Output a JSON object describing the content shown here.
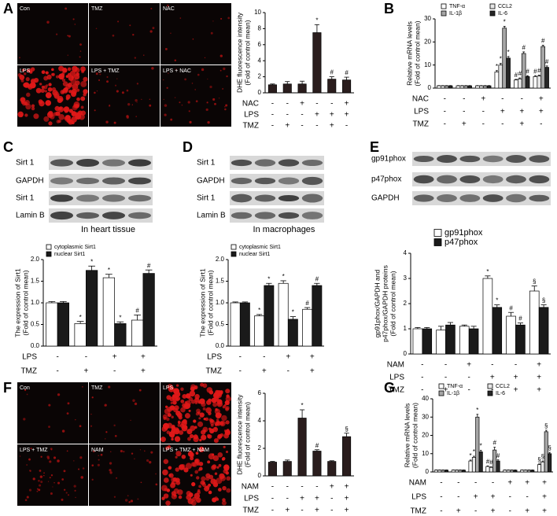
{
  "panels": [
    "A",
    "B",
    "C",
    "D",
    "E",
    "F",
    "G"
  ],
  "micrographs": [
    {
      "labels": [
        "Con",
        "TMZ",
        "NAC",
        "LPS",
        "LPS + TMZ",
        "LPS + NAC"
      ]
    },
    {
      "labels": [
        "Con",
        "TMZ",
        "LPS",
        "LPS + TMZ",
        "NAM",
        "LPS + TMZ + NAM"
      ]
    }
  ],
  "blots": [
    {
      "labels": [
        "Sirt 1",
        "GAPDH",
        "Sirt 1",
        "Lamin B"
      ]
    },
    {
      "labels": [
        "Sirt 1",
        "GAPDH",
        "Sirt 1",
        "Lamin B"
      ]
    },
    {
      "labels": [
        "gp91phox",
        "p47phox",
        "GAPDH"
      ]
    }
  ],
  "chart_data": [
    {
      "type": "bar",
      "y_label": [
        "DHE fluorescence intensity",
        "(Fold of control mean)"
      ],
      "values": [
        1.0,
        1.1,
        1.1,
        7.5,
        1.7,
        1.6
      ],
      "errors": [
        0.1,
        0.3,
        0.35,
        1.0,
        0.3,
        0.35
      ],
      "annotations": [
        null,
        null,
        null,
        "*",
        "#",
        "#"
      ],
      "color": "#2a1d1d",
      "ylim": [
        0,
        10
      ],
      "yticks": [
        0,
        2,
        4,
        6,
        8,
        10
      ],
      "conditions": [
        {
          "name": "NAC",
          "signs": [
            "-",
            "-",
            "+",
            "-",
            "-",
            "+"
          ]
        },
        {
          "name": "LPS",
          "signs": [
            "-",
            "-",
            "-",
            "+",
            "+",
            "+"
          ]
        },
        {
          "name": "TMZ",
          "signs": [
            "-",
            "+",
            "-",
            "-",
            "+",
            "-"
          ]
        }
      ]
    },
    {
      "type": "bar",
      "y_label": [
        "Relative mRNA levels",
        "(Fold of control mean)"
      ],
      "series": [
        {
          "name": "TNF-α",
          "color": "#ffffff",
          "values": [
            1,
            1,
            1,
            7,
            3.5,
            5
          ],
          "errors": [
            0.1,
            0.1,
            0.1,
            0.6,
            0.3,
            0.4
          ],
          "annotations": [
            null,
            null,
            null,
            "*",
            "#",
            "#"
          ]
        },
        {
          "name": "CCL2",
          "color": "#e6e6e6",
          "values": [
            1,
            1,
            1,
            10,
            4,
            5.2
          ],
          "errors": [
            0.1,
            0.1,
            0.1,
            0.7,
            0.4,
            0.4
          ],
          "annotations": [
            null,
            null,
            null,
            "*",
            "#",
            "#"
          ]
        },
        {
          "name": "IL-1β",
          "color": "#a6a6a6",
          "values": [
            1,
            1,
            1,
            26,
            15,
            18
          ],
          "errors": [
            0.1,
            0.1,
            0.1,
            0.8,
            0.7,
            0.6
          ],
          "annotations": [
            null,
            null,
            null,
            "*",
            "#",
            "#"
          ]
        },
        {
          "name": "IL-6",
          "color": "#262626",
          "values": [
            1,
            1,
            1,
            13,
            5,
            9
          ],
          "errors": [
            0.1,
            0.1,
            0.1,
            0.7,
            0.4,
            0.6
          ],
          "annotations": [
            null,
            null,
            null,
            "*",
            "#",
            "#"
          ]
        }
      ],
      "ylim": [
        0,
        30
      ],
      "yticks": [
        0,
        10,
        20,
        30
      ],
      "conditions": [
        {
          "name": "NAC",
          "signs": [
            "-",
            "-",
            "+",
            "-",
            "-",
            "+"
          ]
        },
        {
          "name": "LPS",
          "signs": [
            "-",
            "-",
            "-",
            "+",
            "+",
            "+"
          ]
        },
        {
          "name": "TMZ",
          "signs": [
            "-",
            "+",
            "-",
            "-",
            "+",
            "-"
          ]
        }
      ]
    },
    {
      "type": "bar",
      "subtitle": "In heart tissue",
      "y_label": [
        "The expression of Sirt1",
        "(Fold of control mean)"
      ],
      "series": [
        {
          "name": "cytoplasmic Sirt1",
          "color": "#ffffff",
          "values": [
            1.0,
            0.52,
            1.58,
            0.6
          ],
          "errors": [
            0.03,
            0.05,
            0.08,
            0.12
          ],
          "annotations": [
            null,
            "*",
            "*",
            "#"
          ]
        },
        {
          "name": "nuclear Sirt1",
          "color": "#1a1a1a",
          "values": [
            1.0,
            1.75,
            0.52,
            1.68
          ],
          "errors": [
            0.03,
            0.1,
            0.04,
            0.08
          ],
          "annotations": [
            null,
            "*",
            "*",
            "#"
          ]
        }
      ],
      "ylim": [
        0,
        2
      ],
      "yticks": [
        {
          "value": 0,
          "label": "0.0"
        },
        {
          "value": 0.5,
          "label": "0.5"
        },
        {
          "value": 1,
          "label": "1.0"
        },
        {
          "value": 1.5,
          "label": "1.5"
        },
        {
          "value": 2,
          "label": "2.0"
        }
      ],
      "conditions": [
        {
          "name": "LPS",
          "signs": [
            "-",
            "-",
            "+",
            "+"
          ]
        },
        {
          "name": "TMZ",
          "signs": [
            "-",
            "+",
            "-",
            "+"
          ]
        }
      ]
    },
    {
      "type": "bar",
      "subtitle": "In macrophages",
      "y_label": [
        "The expression of Sirt1",
        "(Fold of control mean)"
      ],
      "series": [
        {
          "name": "cytoplasmic Sirt1",
          "color": "#ffffff",
          "values": [
            1.0,
            0.7,
            1.45,
            0.85
          ],
          "errors": [
            0.02,
            0.03,
            0.06,
            0.04
          ],
          "annotations": [
            null,
            "*",
            "*",
            "#"
          ]
        },
        {
          "name": "nuclear Sirt1",
          "color": "#1a1a1a",
          "values": [
            1.0,
            1.4,
            0.62,
            1.4
          ],
          "errors": [
            0.02,
            0.05,
            0.06,
            0.05
          ],
          "annotations": [
            null,
            "*",
            "*",
            "#"
          ]
        }
      ],
      "ylim": [
        0,
        2
      ],
      "yticks": [
        {
          "value": 0,
          "label": "0.0"
        },
        {
          "value": 0.5,
          "label": "0.5"
        },
        {
          "value": 1,
          "label": "1.0"
        },
        {
          "value": 1.5,
          "label": "1.5"
        },
        {
          "value": 2,
          "label": "2.0"
        }
      ],
      "conditions": [
        {
          "name": "LPS",
          "signs": [
            "-",
            "-",
            "+",
            "+"
          ]
        },
        {
          "name": "TMZ",
          "signs": [
            "-",
            "+",
            "-",
            "+"
          ]
        }
      ]
    },
    {
      "type": "bar",
      "y_label": [
        "gp91phox/GAPDH and",
        "p47phox/GAPDH proteins",
        "(Fold of control mean)"
      ],
      "series": [
        {
          "name": "gp91phox",
          "color": "#ffffff",
          "values": [
            1.0,
            0.95,
            1.1,
            3.0,
            1.5,
            2.5
          ],
          "errors": [
            0.05,
            0.15,
            0.05,
            0.1,
            0.15,
            0.2
          ],
          "annotations": [
            null,
            null,
            null,
            "*",
            "#",
            "§"
          ]
        },
        {
          "name": "p47phox",
          "color": "#1a1a1a",
          "values": [
            1.0,
            1.15,
            1.0,
            1.85,
            1.15,
            1.85
          ],
          "errors": [
            0.05,
            0.1,
            0.1,
            0.1,
            0.08,
            0.1
          ],
          "annotations": [
            null,
            null,
            null,
            "*",
            "#",
            "§"
          ]
        }
      ],
      "ylim": [
        0,
        4
      ],
      "yticks": [
        0,
        1,
        2,
        3,
        4
      ],
      "conditions": [
        {
          "name": "NAM",
          "signs": [
            "-",
            "-",
            "+",
            "-",
            "-",
            "+"
          ]
        },
        {
          "name": "LPS",
          "signs": [
            "-",
            "-",
            "-",
            "+",
            "+",
            "+"
          ]
        },
        {
          "name": "TMZ",
          "signs": [
            "-",
            "+",
            "-",
            "-",
            "+",
            "+"
          ]
        }
      ]
    },
    {
      "type": "bar",
      "y_label": [
        "DHE fluorescence intensity",
        "(Fold of control mean)"
      ],
      "values": [
        1.0,
        1.05,
        4.2,
        1.8,
        1.05,
        2.85
      ],
      "errors": [
        0.05,
        0.1,
        0.6,
        0.1,
        0.05,
        0.25
      ],
      "annotations": [
        null,
        null,
        "*",
        "#",
        null,
        "§"
      ],
      "color": "#2a1d1d",
      "ylim": [
        0,
        6
      ],
      "yticks": [
        0,
        2,
        4,
        6
      ],
      "conditions": [
        {
          "name": "NAM",
          "signs": [
            "-",
            "-",
            "-",
            "-",
            "+",
            "+"
          ]
        },
        {
          "name": "LPS",
          "signs": [
            "-",
            "-",
            "+",
            "+",
            "-",
            "+"
          ]
        },
        {
          "name": "TMZ",
          "signs": [
            "-",
            "+",
            "-",
            "+",
            "-",
            "+"
          ]
        }
      ]
    },
    {
      "type": "bar",
      "y_label": [
        "Relative mRNA levels",
        "(Fold of control mean)"
      ],
      "series": [
        {
          "name": "TNF-α",
          "color": "#ffffff",
          "values": [
            1,
            1,
            6,
            3,
            1,
            1,
            4
          ],
          "errors": [
            0.1,
            0.1,
            0.5,
            0.3,
            0.1,
            0.1,
            0.4
          ],
          "annotations": [
            null,
            null,
            "*",
            "#",
            null,
            null,
            "§"
          ]
        },
        {
          "name": "CCL2",
          "color": "#e6e6e6",
          "values": [
            1,
            1,
            8,
            2.5,
            1,
            1,
            5.5
          ],
          "errors": [
            0.1,
            0.1,
            0.6,
            0.3,
            0.1,
            0.1,
            0.5
          ],
          "annotations": [
            null,
            null,
            "*",
            "#",
            null,
            null,
            "§"
          ]
        },
        {
          "name": "IL-1β",
          "color": "#a6a6a6",
          "values": [
            1,
            1,
            30,
            12,
            1,
            1,
            22
          ],
          "errors": [
            0.1,
            0.1,
            1.5,
            1.5,
            0.1,
            0.1,
            0.8
          ],
          "annotations": [
            null,
            null,
            "*",
            "#",
            null,
            null,
            "§"
          ]
        },
        {
          "name": "IL-6",
          "color": "#262626",
          "values": [
            1,
            1,
            11,
            6,
            1,
            1,
            10
          ],
          "errors": [
            0.1,
            0.1,
            0.8,
            0.6,
            0.1,
            0.1,
            0.7
          ],
          "annotations": [
            null,
            null,
            "*",
            "#",
            null,
            null,
            "§"
          ]
        }
      ],
      "ylim": [
        0,
        40
      ],
      "yticks": [
        0,
        10,
        20,
        30,
        40
      ],
      "conditions": [
        {
          "name": "NAM",
          "signs": [
            "-",
            "-",
            "-",
            "-",
            "+",
            "+",
            "+"
          ]
        },
        {
          "name": "LPS",
          "signs": [
            "-",
            "-",
            "+",
            "+",
            "-",
            "-",
            "+"
          ]
        },
        {
          "name": "TMZ",
          "signs": [
            "-",
            "+",
            "-",
            "+",
            "-",
            "+",
            "+"
          ]
        }
      ]
    }
  ]
}
